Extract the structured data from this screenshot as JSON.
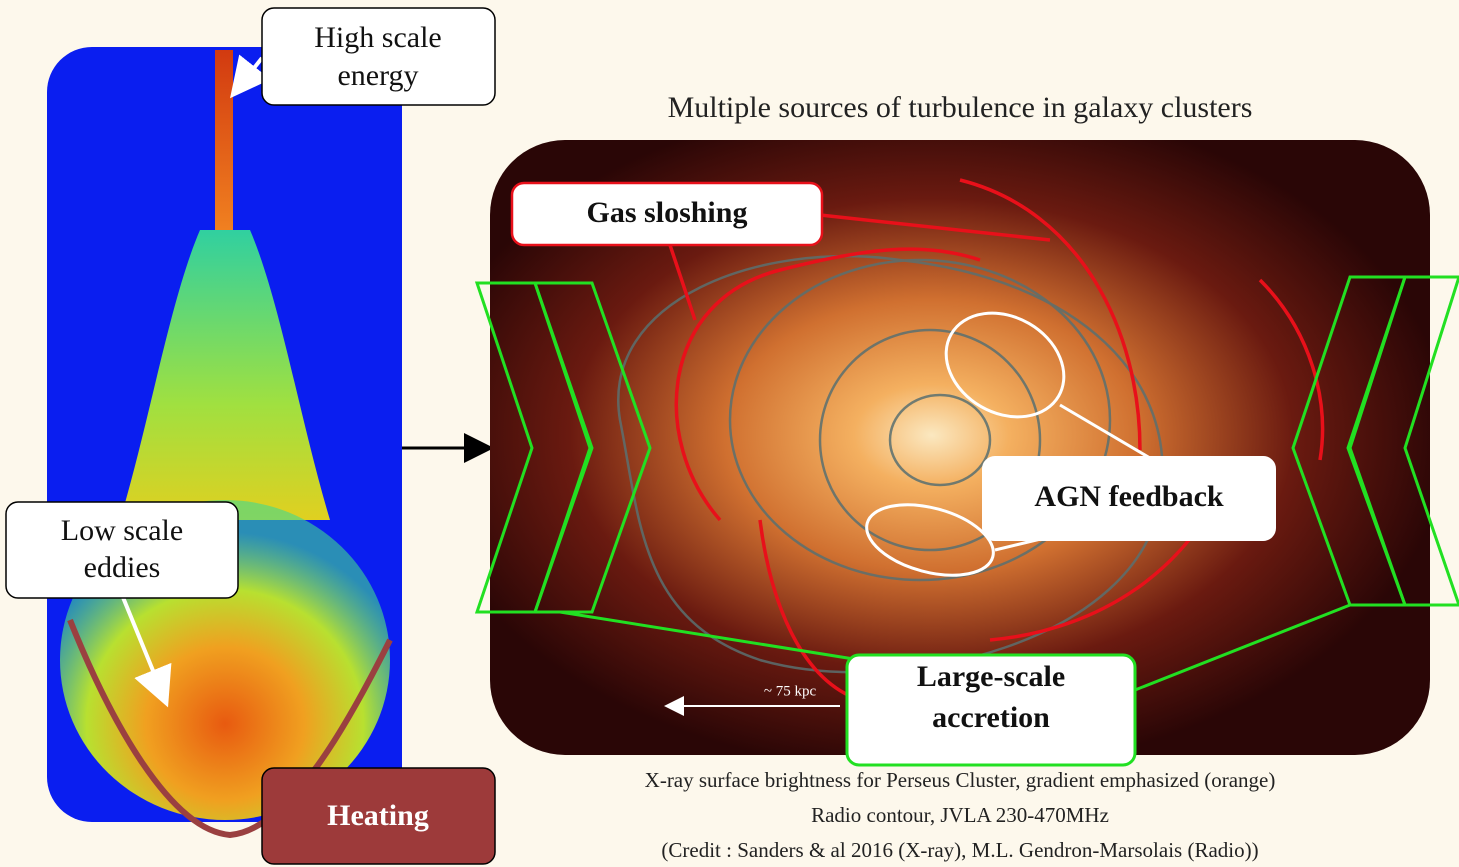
{
  "title": "Multiple sources of turbulence in galaxy clusters",
  "simulation": {
    "top_label": [
      "High scale",
      "energy"
    ],
    "eddies_label": [
      "Low scale",
      "eddies"
    ],
    "heating_label": "Heating"
  },
  "cluster": {
    "sloshing_label": "Gas sloshing",
    "agn_label": "AGN feedback",
    "accretion_label": [
      "Large-scale",
      "accretion"
    ],
    "scale_bar": "~ 75 kpc"
  },
  "caption": [
    "X-ray surface brightness for Perseus Cluster, gradient emphasized (orange)",
    "Radio contour, JVLA 230-470MHz",
    "(Credit : Sanders & al 2016 (X-ray), M.L. Gendron-Marsolais (Radio))"
  ]
}
